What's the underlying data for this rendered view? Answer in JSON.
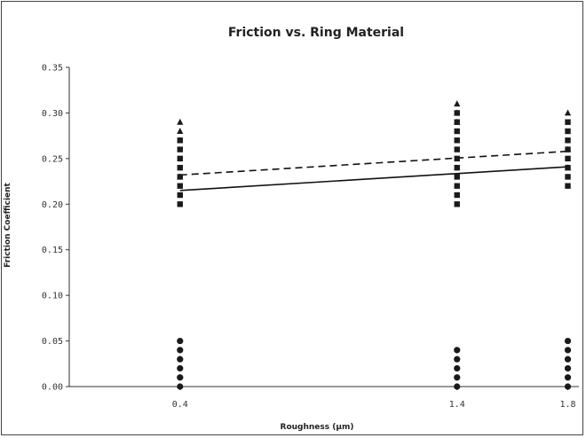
{
  "chart_data": {
    "type": "scatter",
    "title": "Friction vs. Ring Material",
    "xlabel": "Roughness (µm)",
    "ylabel": "Friction Coefficient",
    "x_ticks": [
      0.4,
      1.4,
      1.8
    ],
    "x_tick_labels": [
      "0.4",
      "1.4",
      "1.8"
    ],
    "xlim": [
      0.0,
      1.84
    ],
    "ylim": [
      0.0,
      0.35
    ],
    "y_ticks": [
      0.0,
      0.05,
      0.1,
      0.15,
      0.2,
      0.25,
      0.3,
      0.35
    ],
    "y_tick_labels": [
      "0.00",
      "0.05",
      "0.10",
      "0.15",
      "0.20",
      "0.25",
      "0.30",
      "0.35"
    ],
    "grid": false,
    "legend": false,
    "series": [
      {
        "marker": "triangle",
        "points": [
          [
            0.4,
            0.29
          ],
          [
            0.4,
            0.28
          ],
          [
            0.4,
            0.27
          ],
          [
            0.4,
            0.23
          ],
          [
            1.4,
            0.31
          ],
          [
            1.4,
            0.3
          ],
          [
            1.4,
            0.29
          ],
          [
            1.8,
            0.3
          ],
          [
            1.8,
            0.26
          ],
          [
            1.8,
            0.24
          ]
        ]
      },
      {
        "marker": "square",
        "points": [
          [
            0.4,
            0.27
          ],
          [
            0.4,
            0.26
          ],
          [
            0.4,
            0.25
          ],
          [
            0.4,
            0.24
          ],
          [
            0.4,
            0.23
          ],
          [
            0.4,
            0.22
          ],
          [
            0.4,
            0.21
          ],
          [
            0.4,
            0.2
          ],
          [
            1.4,
            0.3
          ],
          [
            1.4,
            0.29
          ],
          [
            1.4,
            0.28
          ],
          [
            1.4,
            0.27
          ],
          [
            1.4,
            0.26
          ],
          [
            1.4,
            0.25
          ],
          [
            1.4,
            0.24
          ],
          [
            1.4,
            0.23
          ],
          [
            1.4,
            0.22
          ],
          [
            1.4,
            0.21
          ],
          [
            1.4,
            0.2
          ],
          [
            1.8,
            0.29
          ],
          [
            1.8,
            0.28
          ],
          [
            1.8,
            0.27
          ],
          [
            1.8,
            0.26
          ],
          [
            1.8,
            0.25
          ],
          [
            1.8,
            0.24
          ],
          [
            1.8,
            0.23
          ],
          [
            1.8,
            0.22
          ]
        ]
      },
      {
        "marker": "circle",
        "points": [
          [
            0.4,
            0.05
          ],
          [
            0.4,
            0.04
          ],
          [
            0.4,
            0.03
          ],
          [
            0.4,
            0.02
          ],
          [
            0.4,
            0.01
          ],
          [
            0.4,
            0.0
          ],
          [
            1.4,
            0.04
          ],
          [
            1.4,
            0.03
          ],
          [
            1.4,
            0.02
          ],
          [
            1.4,
            0.01
          ],
          [
            1.4,
            0.0
          ],
          [
            1.8,
            0.05
          ],
          [
            1.8,
            0.04
          ],
          [
            1.8,
            0.03
          ],
          [
            1.8,
            0.02
          ],
          [
            1.8,
            0.01
          ],
          [
            1.8,
            0.0
          ]
        ]
      }
    ],
    "trendlines": [
      {
        "style": "dashed",
        "x": [
          0.4,
          1.8
        ],
        "y": [
          0.232,
          0.258
        ]
      },
      {
        "style": "solid",
        "x": [
          0.4,
          1.8
        ],
        "y": [
          0.215,
          0.241
        ]
      }
    ]
  }
}
